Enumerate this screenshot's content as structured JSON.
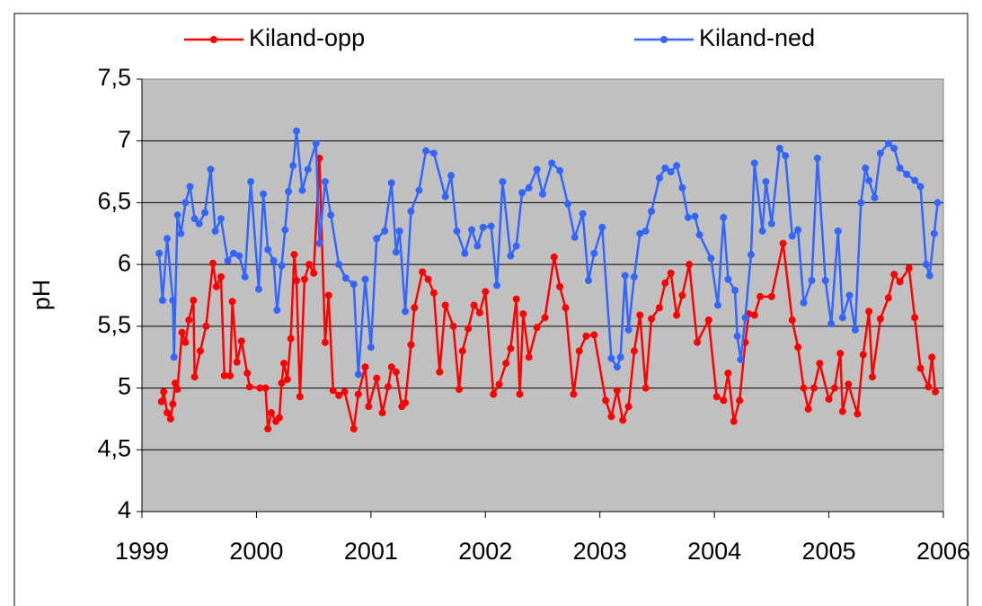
{
  "chart_data": {
    "type": "line",
    "ylabel": "pH",
    "legend": "top",
    "grid": true,
    "xlim": [
      1999,
      2006
    ],
    "xticks": [
      1999,
      2000,
      2001,
      2002,
      2003,
      2004,
      2005,
      2006
    ],
    "ylim": [
      4,
      7.5
    ],
    "yticks": [
      4,
      {
        "value": 4.5,
        "label": "4,5"
      },
      5,
      {
        "value": 5.5,
        "label": "5,5"
      },
      6,
      {
        "value": 6.5,
        "label": "6,5"
      },
      7,
      {
        "value": 7.5,
        "label": "7,5"
      }
    ],
    "series": [
      {
        "name": "Kiland-opp",
        "color": "#ff0000",
        "x": [
          1999.17,
          1999.19,
          1999.22,
          1999.25,
          1999.27,
          1999.29,
          1999.31,
          1999.35,
          1999.38,
          1999.41,
          1999.45,
          1999.46,
          1999.51,
          1999.56,
          1999.62,
          1999.65,
          1999.69,
          1999.72,
          1999.77,
          1999.79,
          1999.83,
          1999.87,
          1999.92,
          1999.94,
          2000.03,
          2000.08,
          2000.1,
          2000.13,
          2000.17,
          2000.2,
          2000.22,
          2000.24,
          2000.27,
          2000.3,
          2000.33,
          2000.35,
          2000.38,
          2000.42,
          2000.46,
          2000.5,
          2000.55,
          2000.6,
          2000.63,
          2000.67,
          2000.72,
          2000.77,
          2000.85,
          2000.89,
          2000.95,
          2000.98,
          2001.05,
          2001.1,
          2001.15,
          2001.18,
          2001.22,
          2001.27,
          2001.3,
          2001.35,
          2001.38,
          2001.45,
          2001.5,
          2001.55,
          2001.6,
          2001.65,
          2001.72,
          2001.77,
          2001.8,
          2001.85,
          2001.9,
          2001.95,
          2002.0,
          2002.07,
          2002.12,
          2002.18,
          2002.22,
          2002.27,
          2002.3,
          2002.33,
          2002.38,
          2002.45,
          2002.52,
          2002.6,
          2002.65,
          2002.7,
          2002.77,
          2002.82,
          2002.88,
          2002.95,
          2003.05,
          2003.1,
          2003.15,
          2003.2,
          2003.25,
          2003.3,
          2003.35,
          2003.4,
          2003.45,
          2003.52,
          2003.57,
          2003.62,
          2003.67,
          2003.72,
          2003.78,
          2003.85,
          2003.95,
          2004.02,
          2004.08,
          2004.12,
          2004.17,
          2004.22,
          2004.27,
          2004.3,
          2004.35,
          2004.4,
          2004.5,
          2004.6,
          2004.68,
          2004.73,
          2004.78,
          2004.82,
          2004.87,
          2004.92,
          2005.0,
          2005.05,
          2005.1,
          2005.12,
          2005.17,
          2005.25,
          2005.3,
          2005.35,
          2005.38,
          2005.45,
          2005.52,
          2005.57,
          2005.62,
          2005.7,
          2005.75,
          2005.8,
          2005.87,
          2005.9,
          2005.93
        ],
        "values": [
          4.89,
          4.97,
          4.8,
          4.75,
          4.87,
          5.04,
          4.99,
          5.45,
          5.37,
          5.55,
          5.71,
          5.09,
          5.3,
          5.5,
          6.01,
          5.82,
          5.9,
          5.1,
          5.1,
          5.7,
          5.21,
          5.38,
          5.12,
          5.01,
          5.0,
          5.0,
          4.67,
          4.8,
          4.73,
          4.76,
          5.04,
          5.2,
          5.07,
          5.4,
          6.08,
          5.87,
          4.93,
          5.88,
          6.0,
          5.93,
          6.86,
          5.37,
          5.75,
          4.98,
          4.94,
          4.97,
          4.67,
          4.95,
          5.17,
          4.85,
          5.08,
          4.8,
          5.01,
          5.17,
          5.13,
          4.85,
          4.88,
          5.35,
          5.65,
          5.94,
          5.88,
          5.77,
          5.13,
          5.67,
          5.5,
          4.99,
          5.3,
          5.48,
          5.67,
          5.61,
          5.78,
          4.95,
          5.03,
          5.2,
          5.32,
          5.72,
          4.95,
          5.6,
          5.25,
          5.49,
          5.57,
          6.06,
          5.82,
          5.65,
          4.95,
          5.3,
          5.42,
          5.43,
          4.9,
          4.77,
          4.98,
          4.74,
          4.85,
          5.3,
          5.59,
          5.0,
          5.56,
          5.65,
          5.85,
          5.93,
          5.59,
          5.75,
          6.0,
          5.37,
          5.55,
          4.93,
          4.9,
          5.12,
          4.73,
          4.9,
          5.37,
          5.6,
          5.59,
          5.74,
          5.74,
          6.17,
          5.55,
          5.33,
          5.0,
          4.83,
          5.0,
          5.2,
          4.91,
          5.0,
          5.28,
          4.81,
          5.03,
          4.79,
          5.27,
          5.62,
          5.09,
          5.56,
          5.73,
          5.92,
          5.86,
          5.97,
          5.57,
          5.16,
          5.01,
          5.25,
          4.97
        ]
      },
      {
        "name": "Kiland-ned",
        "color": "#3366ff",
        "x": [
          1999.15,
          1999.18,
          1999.22,
          1999.27,
          1999.28,
          1999.31,
          1999.34,
          1999.38,
          1999.42,
          1999.46,
          1999.5,
          1999.55,
          1999.6,
          1999.64,
          1999.69,
          1999.75,
          1999.8,
          1999.85,
          1999.9,
          1999.95,
          2000.02,
          2000.06,
          2000.1,
          2000.15,
          2000.18,
          2000.22,
          2000.25,
          2000.28,
          2000.32,
          2000.35,
          2000.4,
          2000.45,
          2000.52,
          2000.55,
          2000.6,
          2000.65,
          2000.72,
          2000.78,
          2000.85,
          2000.89,
          2000.95,
          2001.0,
          2001.05,
          2001.12,
          2001.18,
          2001.22,
          2001.25,
          2001.3,
          2001.35,
          2001.42,
          2001.48,
          2001.55,
          2001.65,
          2001.7,
          2001.75,
          2001.82,
          2001.88,
          2001.93,
          2001.98,
          2002.05,
          2002.1,
          2002.15,
          2002.22,
          2002.27,
          2002.32,
          2002.38,
          2002.45,
          2002.5,
          2002.58,
          2002.65,
          2002.72,
          2002.78,
          2002.85,
          2002.9,
          2002.95,
          2003.02,
          2003.1,
          2003.15,
          2003.18,
          2003.22,
          2003.25,
          2003.3,
          2003.35,
          2003.4,
          2003.45,
          2003.52,
          2003.57,
          2003.62,
          2003.67,
          2003.72,
          2003.77,
          2003.83,
          2003.87,
          2003.97,
          2004.03,
          2004.08,
          2004.12,
          2004.18,
          2004.2,
          2004.23,
          2004.27,
          2004.32,
          2004.35,
          2004.42,
          2004.45,
          2004.5,
          2004.57,
          2004.62,
          2004.68,
          2004.73,
          2004.78,
          2004.85,
          2004.9,
          2004.97,
          2005.02,
          2005.08,
          2005.12,
          2005.18,
          2005.23,
          2005.28,
          2005.32,
          2005.35,
          2005.4,
          2005.45,
          2005.52,
          2005.57,
          2005.62,
          2005.68,
          2005.75,
          2005.8,
          2005.85,
          2005.88,
          2005.92,
          2005.95
        ],
        "values": [
          6.09,
          5.71,
          6.21,
          5.71,
          5.25,
          6.4,
          6.25,
          6.5,
          6.63,
          6.37,
          6.33,
          6.42,
          6.77,
          6.27,
          6.37,
          6.03,
          6.09,
          6.07,
          5.9,
          6.67,
          5.8,
          6.57,
          6.12,
          6.03,
          5.63,
          5.99,
          6.28,
          6.59,
          6.8,
          7.08,
          6.6,
          6.77,
          6.98,
          6.17,
          6.67,
          6.4,
          6.0,
          5.89,
          5.84,
          5.11,
          5.88,
          5.33,
          6.21,
          6.27,
          6.66,
          6.1,
          6.27,
          5.62,
          6.43,
          6.6,
          6.92,
          6.9,
          6.55,
          6.72,
          6.27,
          6.09,
          6.28,
          6.15,
          6.3,
          6.31,
          5.83,
          6.67,
          6.07,
          6.15,
          6.58,
          6.62,
          6.77,
          6.57,
          6.82,
          6.76,
          6.49,
          6.22,
          6.41,
          5.87,
          6.09,
          6.3,
          5.24,
          5.17,
          5.25,
          5.91,
          5.47,
          5.9,
          6.25,
          6.27,
          6.43,
          6.7,
          6.78,
          6.75,
          6.8,
          6.62,
          6.38,
          6.39,
          6.24,
          6.05,
          5.67,
          6.38,
          5.88,
          5.79,
          5.42,
          5.23,
          5.57,
          6.08,
          6.82,
          6.27,
          6.67,
          6.33,
          6.94,
          6.88,
          6.23,
          6.28,
          5.69,
          5.87,
          6.86,
          5.87,
          5.52,
          6.27,
          5.57,
          5.75,
          5.47,
          6.5,
          6.78,
          6.68,
          6.54,
          6.9,
          6.98,
          6.94,
          6.78,
          6.73,
          6.68,
          6.63,
          6.0,
          5.91,
          6.25,
          6.5
        ]
      }
    ]
  }
}
